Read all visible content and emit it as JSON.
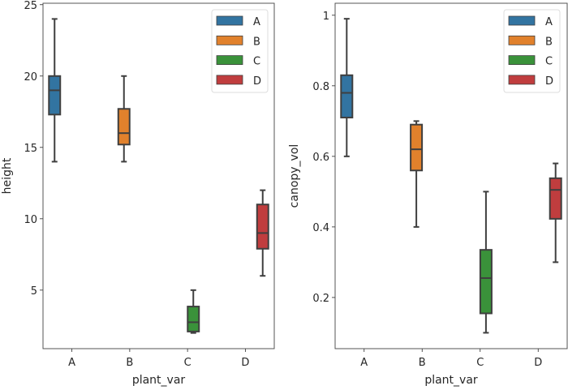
{
  "chart_data": [
    {
      "type": "box",
      "xlabel": "plant_var",
      "ylabel": "height",
      "categories": [
        "A",
        "B",
        "C",
        "D"
      ],
      "ylim": [
        0.9,
        25.1
      ],
      "yticks": [
        5,
        10,
        15,
        20,
        25
      ],
      "grid": false,
      "legend": {
        "placement": "top-right",
        "entries": [
          "A",
          "B",
          "C",
          "D"
        ]
      },
      "series": [
        {
          "name": "A",
          "category": "A",
          "whisker_low": 14,
          "q1": 17.3,
          "median": 19,
          "q3": 20,
          "whisker_high": 24
        },
        {
          "name": "B",
          "category": "B",
          "whisker_low": 14,
          "q1": 15.2,
          "median": 16,
          "q3": 17.7,
          "whisker_high": 20
        },
        {
          "name": "C",
          "category": "C",
          "whisker_low": 2,
          "q1": 2.1,
          "median": 2.75,
          "q3": 3.85,
          "whisker_high": 5
        },
        {
          "name": "D",
          "category": "D",
          "whisker_low": 6,
          "q1": 7.9,
          "median": 9,
          "q3": 11,
          "whisker_high": 12
        }
      ]
    },
    {
      "type": "box",
      "xlabel": "plant_var",
      "ylabel": "canopy_vol",
      "categories": [
        "A",
        "B",
        "C",
        "D"
      ],
      "ylim": [
        0.055,
        1.034
      ],
      "yticks": [
        0.2,
        0.4,
        0.6,
        0.8,
        1.0
      ],
      "grid": false,
      "legend": {
        "placement": "top-right",
        "entries": [
          "A",
          "B",
          "C",
          "D"
        ]
      },
      "series": [
        {
          "name": "A",
          "category": "A",
          "whisker_low": 0.6,
          "q1": 0.71,
          "median": 0.78,
          "q3": 0.83,
          "whisker_high": 0.99
        },
        {
          "name": "B",
          "category": "B",
          "whisker_low": 0.4,
          "q1": 0.56,
          "median": 0.62,
          "q3": 0.69,
          "whisker_high": 0.7
        },
        {
          "name": "C",
          "category": "C",
          "whisker_low": 0.1,
          "q1": 0.155,
          "median": 0.255,
          "q3": 0.335,
          "whisker_high": 0.5
        },
        {
          "name": "D",
          "category": "D",
          "whisker_low": 0.3,
          "q1": 0.423,
          "median": 0.505,
          "q3": 0.538,
          "whisker_high": 0.58
        }
      ]
    }
  ],
  "colors": {
    "A": "#3274a1",
    "B": "#e1812c",
    "C": "#3a923a",
    "D": "#c03d3e",
    "line": "#3f3f3f"
  }
}
